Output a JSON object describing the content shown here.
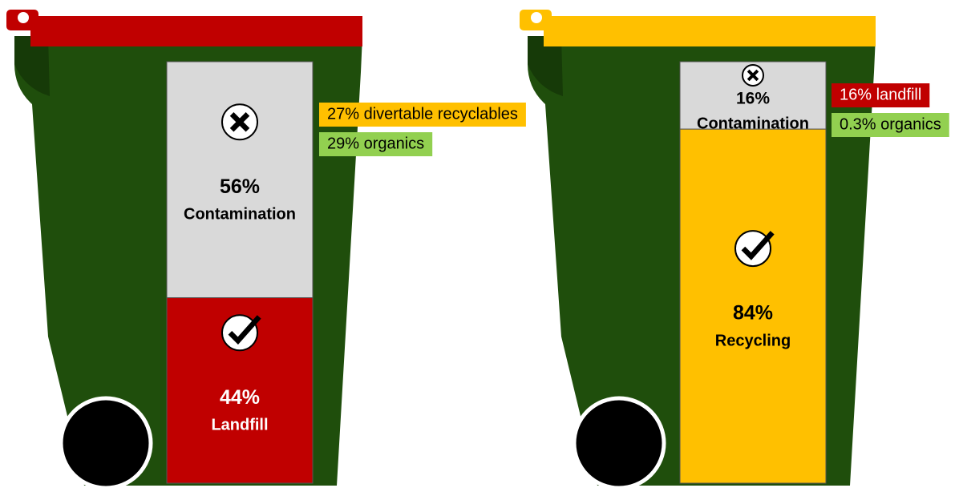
{
  "bins": [
    {
      "lid_color": "#c00000",
      "segments": [
        {
          "label": "Contamination",
          "value": 56,
          "value_label": "56%",
          "color": "#d9d9d9",
          "text_color": "#000000",
          "icon": "cross"
        },
        {
          "label": "Landfill",
          "value": 44,
          "value_label": "44%",
          "color": "#c00000",
          "text_color": "#ffffff",
          "icon": "check"
        }
      ],
      "notes": [
        {
          "text": "27% divertable recyclables",
          "color": "#ffc000",
          "text_color": "#000000"
        },
        {
          "text": "29% organics",
          "color": "#92d050",
          "text_color": "#000000"
        }
      ]
    },
    {
      "lid_color": "#ffc000",
      "segments": [
        {
          "label": "Contamination",
          "value": 16,
          "value_label": "16%",
          "color": "#d9d9d9",
          "text_color": "#000000",
          "icon": "cross"
        },
        {
          "label": "Recycling",
          "value": 84,
          "value_label": "84%",
          "color": "#ffc000",
          "text_color": "#000000",
          "icon": "check"
        }
      ],
      "notes": [
        {
          "text": "16% landfill",
          "color": "#c00000",
          "text_color": "#ffffff"
        },
        {
          "text": "0.3% organics",
          "color": "#92d050",
          "text_color": "#000000"
        }
      ]
    }
  ]
}
